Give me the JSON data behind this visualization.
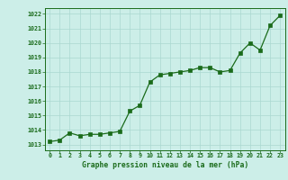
{
  "x": [
    0,
    1,
    2,
    3,
    4,
    5,
    6,
    7,
    8,
    9,
    10,
    11,
    12,
    13,
    14,
    15,
    16,
    17,
    18,
    19,
    20,
    21,
    22,
    23
  ],
  "y": [
    1013.2,
    1013.3,
    1013.8,
    1013.6,
    1013.7,
    1013.7,
    1013.8,
    1013.9,
    1015.3,
    1015.7,
    1017.3,
    1017.8,
    1017.9,
    1018.0,
    1018.1,
    1018.3,
    1018.3,
    1018.0,
    1018.1,
    1019.3,
    1020.0,
    1019.5,
    1021.2,
    1021.9
  ],
  "ylim": [
    1012.6,
    1022.4
  ],
  "yticks": [
    1013,
    1014,
    1015,
    1016,
    1017,
    1018,
    1019,
    1020,
    1021,
    1022
  ],
  "xticks": [
    0,
    1,
    2,
    3,
    4,
    5,
    6,
    7,
    8,
    9,
    10,
    11,
    12,
    13,
    14,
    15,
    16,
    17,
    18,
    19,
    20,
    21,
    22,
    23
  ],
  "xlabel": "Graphe pression niveau de la mer (hPa)",
  "line_color": "#1a6b1a",
  "marker_color": "#1a6b1a",
  "bg_color": "#cceee8",
  "grid_color": "#aad8d0",
  "axis_label_color": "#1a6b1a",
  "tick_label_color": "#1a6b1a"
}
